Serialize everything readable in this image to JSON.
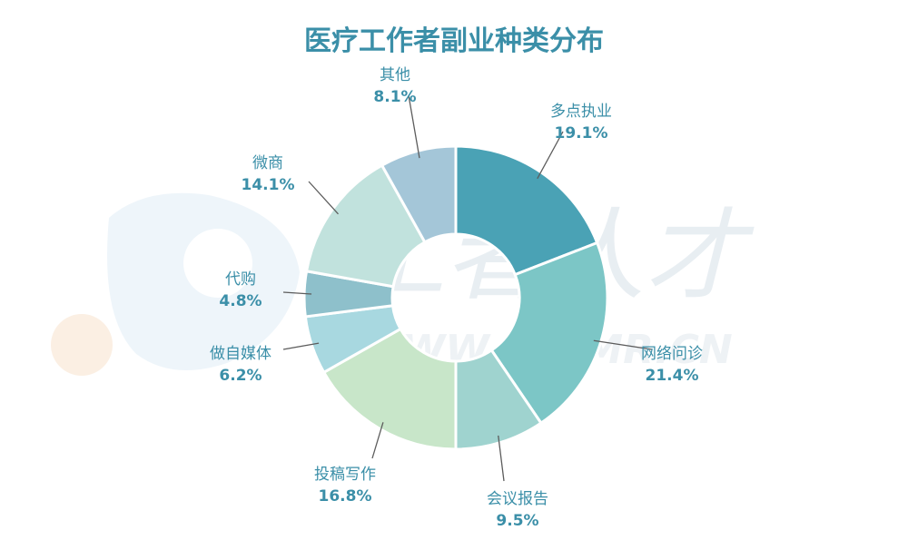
{
  "chart_data": {
    "type": "pie",
    "title": "医疗工作者副业种类分布",
    "donut": true,
    "slices": [
      {
        "label": "多点执业",
        "value": 19.1,
        "value_label": "19.1%",
        "color": "#4aa2b5"
      },
      {
        "label": "网络问诊",
        "value": 21.4,
        "value_label": "21.4%",
        "color": "#7cc6c6"
      },
      {
        "label": "会议报告",
        "value": 9.5,
        "value_label": "9.5%",
        "color": "#9fd3cf"
      },
      {
        "label": "投稿写作",
        "value": 16.8,
        "value_label": "16.8%",
        "color": "#c8e6c9"
      },
      {
        "label": "做自媒体",
        "value": 6.2,
        "value_label": "6.2%",
        "color": "#a8d8e0"
      },
      {
        "label": "代购",
        "value": 4.8,
        "value_label": "4.8%",
        "color": "#8ec0cb"
      },
      {
        "label": "微商",
        "value": 14.1,
        "value_label": "14.1%",
        "color": "#c1e2dd"
      },
      {
        "label": "其他",
        "value": 8.1,
        "value_label": "8.1%",
        "color": "#a4c6d8"
      }
    ]
  },
  "watermark": {
    "text": "工者人才",
    "url_text": "WWW.IQHMR.CN"
  }
}
